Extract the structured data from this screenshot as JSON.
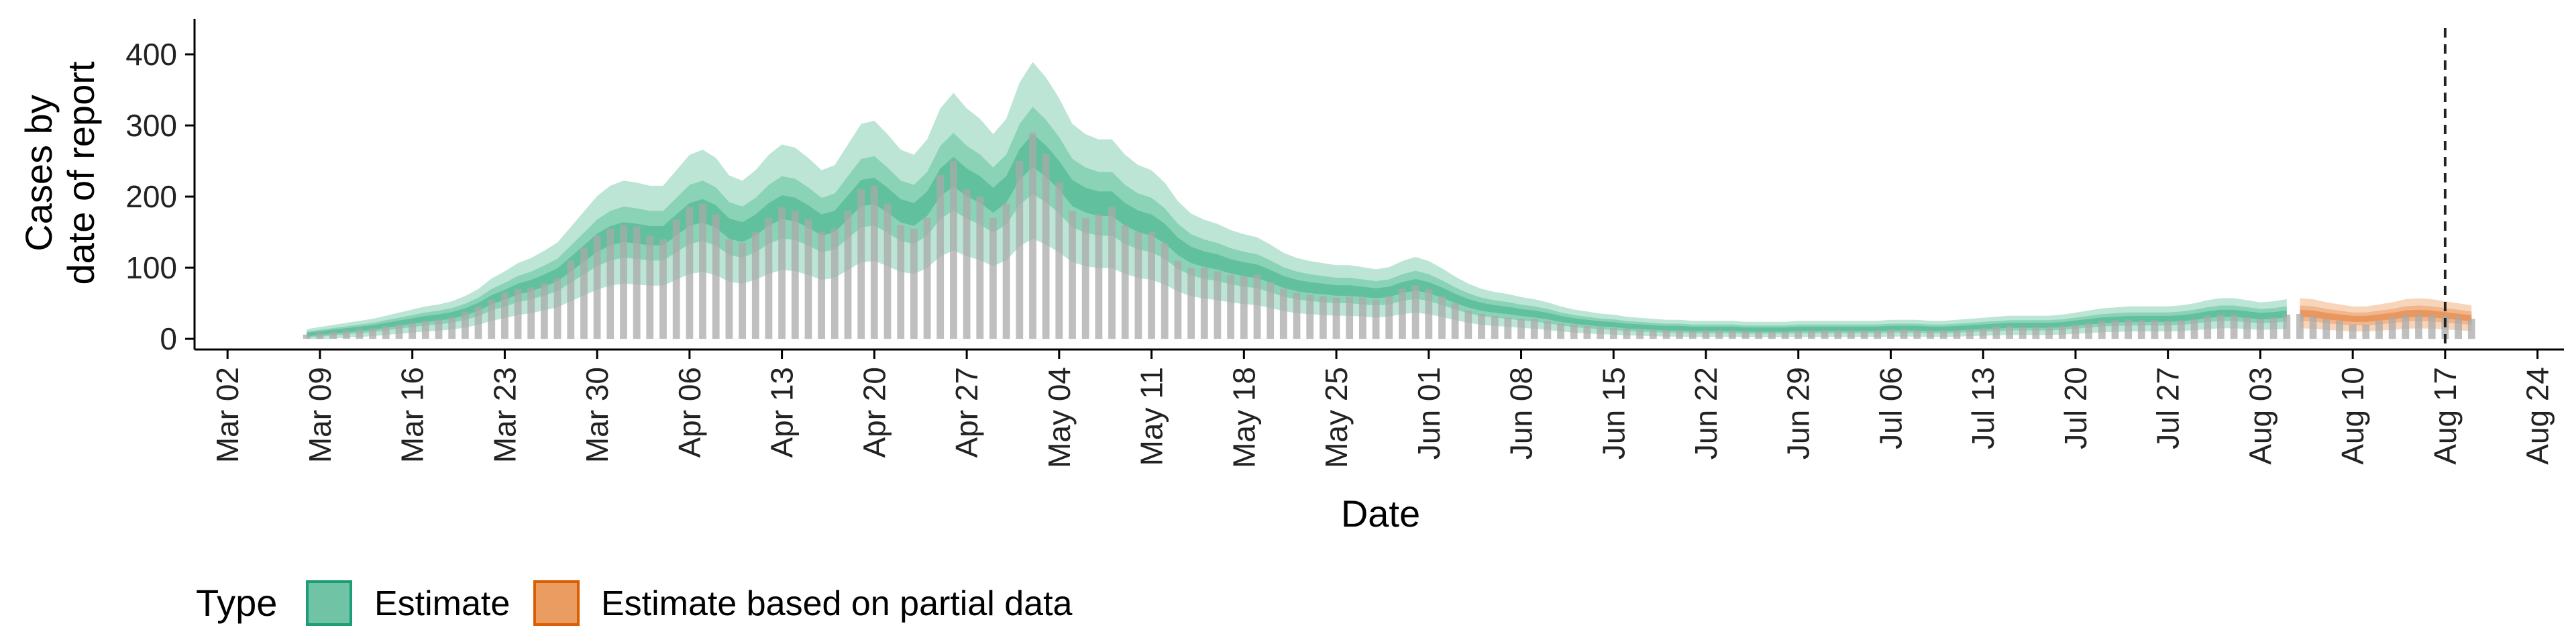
{
  "chart_data": {
    "type": "area",
    "ylabel": [
      "Cases by",
      "date of report"
    ],
    "xlabel": "Date",
    "y_ticks": [
      0,
      100,
      200,
      300,
      400
    ],
    "ylim": [
      -15,
      450
    ],
    "x_ticks": [
      {
        "day": 0,
        "label": "Mar 02"
      },
      {
        "day": 7,
        "label": "Mar 09"
      },
      {
        "day": 14,
        "label": "Mar 16"
      },
      {
        "day": 21,
        "label": "Mar 23"
      },
      {
        "day": 28,
        "label": "Mar 30"
      },
      {
        "day": 35,
        "label": "Apr 06"
      },
      {
        "day": 42,
        "label": "Apr 13"
      },
      {
        "day": 49,
        "label": "Apr 20"
      },
      {
        "day": 56,
        "label": "Apr 27"
      },
      {
        "day": 63,
        "label": "May 04"
      },
      {
        "day": 70,
        "label": "May 11"
      },
      {
        "day": 77,
        "label": "May 18"
      },
      {
        "day": 84,
        "label": "May 25"
      },
      {
        "day": 91,
        "label": "Jun 01"
      },
      {
        "day": 98,
        "label": "Jun 08"
      },
      {
        "day": 105,
        "label": "Jun 15"
      },
      {
        "day": 112,
        "label": "Jun 22"
      },
      {
        "day": 119,
        "label": "Jun 29"
      },
      {
        "day": 126,
        "label": "Jul 06"
      },
      {
        "day": 133,
        "label": "Jul 13"
      },
      {
        "day": 140,
        "label": "Jul 20"
      },
      {
        "day": 147,
        "label": "Jul 27"
      },
      {
        "day": 154,
        "label": "Aug 03"
      },
      {
        "day": 161,
        "label": "Aug 10"
      },
      {
        "day": 168,
        "label": "Aug 17"
      },
      {
        "day": 175,
        "label": "Aug 24"
      }
    ],
    "xlim_days": [
      -2.5,
      177
    ],
    "start_day": 6,
    "partial_start_day": 157,
    "vline_day": 168,
    "daily_cases": [
      6,
      8,
      10,
      12,
      14,
      15,
      18,
      20,
      22,
      25,
      27,
      30,
      38,
      45,
      55,
      65,
      70,
      72,
      78,
      85,
      110,
      128,
      145,
      155,
      160,
      158,
      145,
      140,
      168,
      185,
      190,
      175,
      140,
      135,
      150,
      170,
      185,
      180,
      168,
      150,
      155,
      180,
      210,
      215,
      190,
      160,
      155,
      170,
      230,
      250,
      210,
      200,
      170,
      190,
      250,
      290,
      260,
      220,
      180,
      170,
      175,
      185,
      160,
      150,
      150,
      135,
      110,
      100,
      100,
      95,
      90,
      88,
      90,
      80,
      70,
      65,
      62,
      60,
      58,
      60,
      58,
      55,
      60,
      70,
      75,
      70,
      60,
      50,
      40,
      35,
      32,
      30,
      28,
      28,
      25,
      22,
      20,
      18,
      16,
      15,
      14,
      13,
      12,
      12,
      12,
      11,
      12,
      12,
      12,
      11,
      10,
      10,
      10,
      11,
      12,
      12,
      12,
      12,
      12,
      12,
      13,
      13,
      12,
      12,
      12,
      12,
      13,
      15,
      17,
      18,
      17,
      17,
      17,
      18,
      20,
      22,
      25,
      26,
      27,
      26,
      26,
      25,
      26,
      28,
      32,
      34,
      34,
      30,
      28,
      30,
      34,
      35,
      32,
      28,
      25,
      20,
      20,
      25,
      30,
      33,
      34,
      33,
      32,
      30,
      28
    ],
    "estimate_median": [
      6,
      8,
      10,
      12,
      14,
      16,
      19,
      22,
      25,
      28,
      30,
      33,
      38,
      45,
      55,
      62,
      70,
      75,
      82,
      90,
      105,
      120,
      135,
      145,
      150,
      148,
      145,
      145,
      160,
      175,
      180,
      172,
      155,
      150,
      160,
      175,
      185,
      182,
      172,
      160,
      165,
      185,
      205,
      208,
      195,
      180,
      175,
      190,
      220,
      235,
      220,
      210,
      195,
      210,
      245,
      265,
      250,
      230,
      205,
      195,
      190,
      190,
      175,
      165,
      160,
      148,
      130,
      118,
      112,
      108,
      102,
      98,
      95,
      88,
      80,
      75,
      72,
      70,
      68,
      68,
      66,
      64,
      66,
      72,
      76,
      72,
      65,
      57,
      50,
      45,
      42,
      40,
      37,
      35,
      32,
      28,
      25,
      23,
      21,
      20,
      18,
      17,
      16,
      15,
      15,
      14,
      14,
      14,
      14,
      13,
      13,
      13,
      13,
      14,
      14,
      14,
      14,
      14,
      14,
      14,
      15,
      15,
      15,
      14,
      14,
      15,
      16,
      17,
      18,
      19,
      19,
      19,
      19,
      20,
      22,
      24,
      26,
      27,
      28,
      28,
      28,
      28,
      29,
      31,
      34,
      36,
      36,
      34,
      32,
      33,
      35,
      36,
      35,
      32,
      30,
      28,
      28,
      30,
      32,
      35,
      36,
      35,
      33,
      31,
      29
    ]
  },
  "legend": {
    "title": "Type",
    "items": [
      {
        "label": "Estimate",
        "fill": "#71c3a6",
        "stroke": "#1b9e77"
      },
      {
        "label": "Estimate based on partial data",
        "fill": "#eb9c60",
        "stroke": "#d95f02"
      }
    ]
  },
  "colors": {
    "estimate_inner": "#5cbf9c",
    "estimate_mid": "#85d0b4",
    "estimate_outer": "#b5e2d1",
    "partial_inner": "#e8935a",
    "partial_mid": "#f0b287",
    "partial_outer": "#f6d0b4",
    "bars": "#a9a9a9"
  }
}
